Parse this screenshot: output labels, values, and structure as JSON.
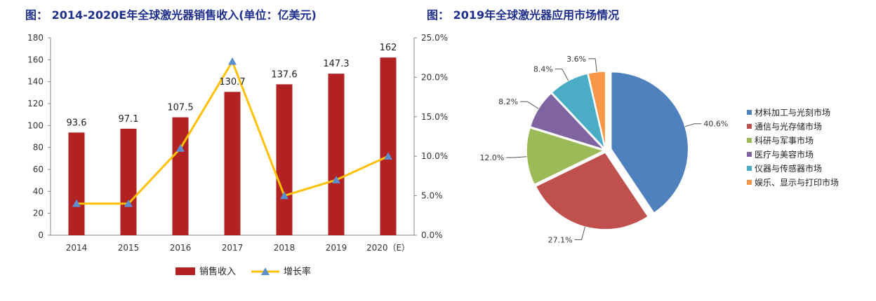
{
  "titles": {
    "left": "图： 2014-2020E年全球激光器销售收入(单位：亿美元)",
    "right": "图： 2019年全球激光器应用市场情况"
  },
  "chart_data": [
    {
      "type": "bar",
      "categories": [
        "2014",
        "2015",
        "2016",
        "2017",
        "2018",
        "2019",
        "2020（E）"
      ],
      "series": [
        {
          "name": "销售收入",
          "type": "bar",
          "axis": "left",
          "color": "#B22222",
          "values": [
            93.6,
            97.1,
            107.5,
            130.7,
            137.6,
            147.3,
            162
          ],
          "labels": [
            "93.6",
            "97.1",
            "107.5",
            "130.7",
            "137.6",
            "147.3",
            "162"
          ]
        },
        {
          "name": "增长率",
          "type": "line",
          "axis": "right",
          "color": "#FFC000",
          "marker_color": "#5B8FD0",
          "values": [
            4.0,
            4.0,
            11.0,
            22.0,
            5.0,
            7.0,
            10.0
          ]
        }
      ],
      "ylim_left": [
        0,
        180
      ],
      "yticks_left": [
        "0",
        "20",
        "40",
        "60",
        "80",
        "100",
        "120",
        "140",
        "160",
        "180"
      ],
      "ylim_right": [
        0,
        25
      ],
      "yticks_right": [
        "0.0%",
        "5.0%",
        "10.0%",
        "15.0%",
        "20.0%",
        "25.0%"
      ],
      "grid": false,
      "legend_position": "bottom"
    },
    {
      "type": "pie",
      "slices": [
        {
          "name": "材料加工与光刻市场",
          "value": 40.6,
          "label": "40.6%",
          "color": "#4F81BD"
        },
        {
          "name": "通信与光存储市场",
          "value": 27.1,
          "label": "27.1%",
          "color": "#C0504D"
        },
        {
          "name": "科研与军事市场",
          "value": 12.0,
          "label": "12.0%",
          "color": "#9BBB59"
        },
        {
          "name": "医疗与美容市场",
          "value": 8.2,
          "label": "8.2%",
          "color": "#8064A2"
        },
        {
          "name": "仪器与传感器市场",
          "value": 8.4,
          "label": "8.4%",
          "color": "#4BACC6"
        },
        {
          "name": "娱乐、显示与打印市场",
          "value": 3.6,
          "label": "3.6%",
          "color": "#F79646"
        }
      ],
      "legend_position": "right"
    }
  ]
}
